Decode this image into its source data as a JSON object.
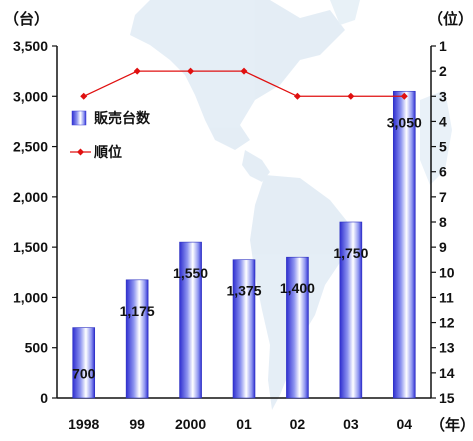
{
  "chart_data": {
    "type": "bar+line",
    "categories": [
      "1998",
      "99",
      "2000",
      "01",
      "02",
      "03",
      "04"
    ],
    "series": [
      {
        "name": "販売台数",
        "type": "bar",
        "axis": "left",
        "values": [
          700,
          1175,
          1550,
          1375,
          1400,
          1750,
          3050
        ],
        "color": "#3b3fd8"
      },
      {
        "name": "順位",
        "type": "line",
        "axis": "right",
        "values": [
          3,
          2,
          2,
          2,
          3,
          3,
          3
        ],
        "color": "#e01010"
      }
    ],
    "data_labels": [
      "700",
      "1,175",
      "1,550",
      "1,375",
      "1,400",
      "1,750",
      "3,050"
    ],
    "left_axis": {
      "unit": "（台）",
      "min": 0,
      "max": 3500,
      "ticks": [
        0,
        500,
        1000,
        1500,
        2000,
        2500,
        3000,
        3500
      ],
      "tick_labels": [
        "0",
        "500",
        "1,000",
        "1,500",
        "2,000",
        "2,500",
        "3,000",
        "3,500"
      ]
    },
    "right_axis": {
      "unit": "（位）",
      "min": 1,
      "max": 15,
      "inverted": true,
      "ticks": [
        1,
        2,
        3,
        4,
        5,
        6,
        7,
        8,
        9,
        10,
        11,
        12,
        13,
        14,
        15
      ],
      "tick_labels": [
        "1",
        "2",
        "3",
        "4",
        "5",
        "6",
        "7",
        "8",
        "9",
        "10",
        "11",
        "12",
        "13",
        "14",
        "15"
      ]
    },
    "x_unit": "（年）",
    "legend": {
      "placement": "upper-left"
    },
    "grid": false,
    "background_image": "americas-map"
  }
}
